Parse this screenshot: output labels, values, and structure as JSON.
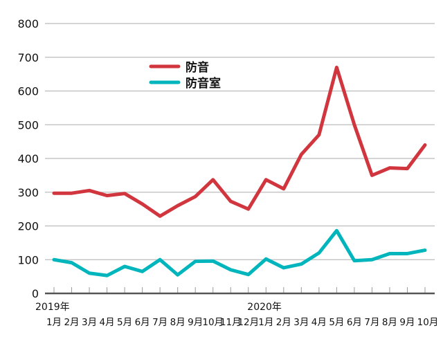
{
  "chart_data": {
    "type": "line",
    "title": "",
    "xlabel": "",
    "ylabel": "",
    "ylim": [
      0,
      800
    ],
    "yticks": [
      0,
      100,
      200,
      300,
      400,
      500,
      600,
      700,
      800
    ],
    "grid": true,
    "legend_position": "top-left",
    "year_labels": [
      {
        "index": 0,
        "label": "2019年"
      },
      {
        "index": 12,
        "label": "2020年"
      }
    ],
    "categories": [
      "1月",
      "2月",
      "3月",
      "4月",
      "5月",
      "6月",
      "7月",
      "8月",
      "9月",
      "10月",
      "11月",
      "12月",
      "1月",
      "2月",
      "3月",
      "4月",
      "5月",
      "6月",
      "7月",
      "8月",
      "9月",
      "10月"
    ],
    "series": [
      {
        "name": "防音",
        "color": "#d1363f",
        "values": [
          297,
          297,
          305,
          290,
          296,
          265,
          229,
          260,
          287,
          337,
          273,
          250,
          337,
          310,
          412,
          470,
          670,
          500,
          350,
          372,
          370,
          440
        ]
      },
      {
        "name": "防音室",
        "color": "#00b5bb",
        "values": [
          100,
          91,
          60,
          53,
          80,
          65,
          100,
          55,
          95,
          96,
          70,
          56,
          102,
          76,
          87,
          120,
          186,
          97,
          100,
          118,
          118,
          128
        ]
      }
    ]
  }
}
